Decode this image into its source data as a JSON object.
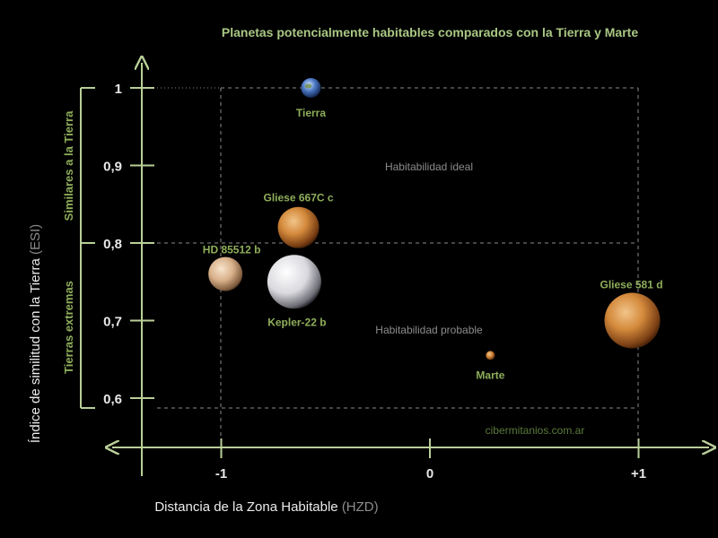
{
  "chart_data": {
    "type": "scatter",
    "title": "Planetas potencialmente habitables comparados con la Tierra y Marte",
    "xlabel": "Distancia de la Zona Habitable",
    "xlabel_unit": "(HZD)",
    "ylabel": "Índice de similitud con la Tierra",
    "ylabel_unit": "(ESI)",
    "x_ticks": [
      "-1",
      "0",
      "+1"
    ],
    "y_ticks": [
      "1",
      "0,9",
      "0,8",
      "0,7",
      "0,6"
    ],
    "xlim": [
      -1.4,
      1.35
    ],
    "ylim": [
      0.55,
      1.08
    ],
    "grid": "dashed reference lines at x=-1, x=+1, y=0.8, y=0.6, y=1",
    "regions": {
      "ideal": "Habitabilidad ideal",
      "probable": "Habitabilidad probable",
      "band_upper": "Similares a la Tierra",
      "band_lower": "Tierras extremas"
    },
    "points": [
      {
        "label": "Tierra",
        "x": -0.57,
        "y": 1.0,
        "kind": "earth"
      },
      {
        "label": "Gliese 667C c",
        "x": -0.63,
        "y": 0.82,
        "kind": "orange"
      },
      {
        "label": "HD 85512 b",
        "x": -0.98,
        "y": 0.76,
        "kind": "pale"
      },
      {
        "label": "Kepler-22 b",
        "x": -0.65,
        "y": 0.75,
        "kind": "white"
      },
      {
        "label": "Gliese 581 d",
        "x": 0.97,
        "y": 0.7,
        "kind": "orange"
      },
      {
        "label": "Marte",
        "x": 0.29,
        "y": 0.655,
        "kind": "orange"
      }
    ],
    "watermark": "cibermitanios.com.ar"
  },
  "colors": {
    "axis": "#b9cf98",
    "title": "#a9c784",
    "label_green": "#8fae5a",
    "grey_text": "#8c8c8c",
    "tick_text": "#e8e8e8",
    "grid": "#8a8a8a"
  }
}
